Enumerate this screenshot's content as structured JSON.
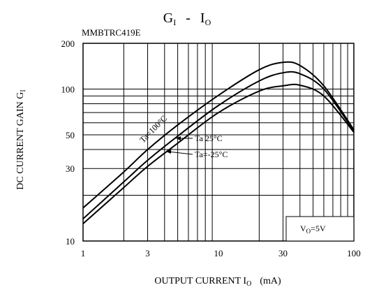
{
  "chart_data": {
    "type": "line",
    "title": {
      "main": "G",
      "main_sub": "I",
      "sep": "-",
      "second": "I",
      "second_sub": "O"
    },
    "part_number": "MMBTRC419E",
    "xlabel": {
      "text": "OUTPUT CURRENT I",
      "sub": "O",
      "unit": "(mA)"
    },
    "ylabel": {
      "text": "DC CURRENT GAIN G",
      "sub": "I"
    },
    "x_scale": "log",
    "y_scale": "log",
    "xlim": [
      1,
      100
    ],
    "ylim": [
      10,
      200
    ],
    "x_ticks": [
      1,
      3,
      10,
      30,
      100
    ],
    "x_tick_labels": [
      "1",
      "3",
      "10",
      "30",
      "100"
    ],
    "y_ticks": [
      10,
      30,
      50,
      100,
      200
    ],
    "y_tick_labels": [
      "10",
      "30",
      "50",
      "100",
      "200"
    ],
    "grid": true,
    "condition": {
      "text": "V",
      "sub": "O",
      "rest": "=5V"
    },
    "series": [
      {
        "name": "Ta=100°C",
        "x": [
          1,
          2,
          3,
          5,
          10,
          20,
          30,
          40,
          60,
          100
        ],
        "y": [
          16.5,
          28.5,
          40,
          58,
          91,
          134,
          150,
          143,
          105,
          54
        ]
      },
      {
        "name": "Ta 25°C",
        "x": [
          1,
          2,
          3,
          5,
          10,
          20,
          30,
          40,
          60,
          100
        ],
        "y": [
          14,
          24.5,
          34,
          49,
          78,
          113,
          128,
          126,
          100,
          53
        ]
      },
      {
        "name": "Ta=-25°C",
        "x": [
          1,
          2,
          3,
          5,
          10,
          20,
          30,
          40,
          60,
          100
        ],
        "y": [
          13,
          22.5,
          31,
          44,
          70,
          97,
          105,
          106,
          90,
          52
        ]
      }
    ]
  }
}
